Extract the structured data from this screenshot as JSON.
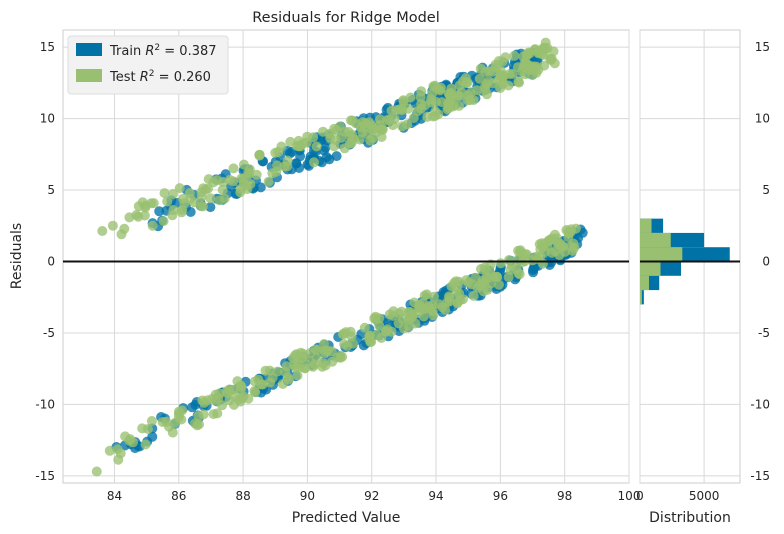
{
  "chart_data": {
    "type": "scatter",
    "title": "Residuals for Ridge Model",
    "xlabel": "Predicted Value",
    "ylabel": "Residuals",
    "xlim": [
      82.4,
      100.0
    ],
    "ylim": [
      -15.5,
      16.2
    ],
    "x_ticks": [
      84,
      86,
      88,
      90,
      92,
      94,
      96,
      98,
      100
    ],
    "y_ticks": [
      -15,
      -10,
      -5,
      0,
      5,
      10,
      15
    ],
    "grid": true,
    "legend_position": "top-left",
    "zero_line": 0,
    "series": [
      {
        "name": "Train",
        "r2_label": "0.387",
        "color": "#0072a6",
        "bands": [
          {
            "x0": 84.6,
            "y0": 2.5,
            "x1": 97.2,
            "y1": 14.2,
            "spread": 2.0
          },
          {
            "x0": 83.8,
            "y0": -13.2,
            "x1": 98.6,
            "y1": 1.6,
            "spread": 1.6
          }
        ],
        "histogram": {
          "bins": [
            -3.0,
            -2.0,
            -1.0,
            0.0,
            1.0,
            2.0,
            3.0
          ],
          "counts": [
            300,
            1500,
            3200,
            7000,
            5000,
            1800,
            400
          ]
        }
      },
      {
        "name": "Test",
        "r2_label": "0.260",
        "color": "#98c070",
        "bands": [
          {
            "x0": 83.3,
            "y0": 1.8,
            "x1": 97.7,
            "y1": 14.6,
            "spread": 2.2
          },
          {
            "x0": 83.0,
            "y0": -14.3,
            "x1": 98.4,
            "y1": 1.8,
            "spread": 1.8
          }
        ],
        "histogram": {
          "bins": [
            -3.0,
            -2.0,
            -1.0,
            0.0,
            1.0,
            2.0,
            3.0
          ],
          "counts": [
            150,
            700,
            1600,
            3300,
            2400,
            900,
            200
          ]
        }
      }
    ],
    "distribution": {
      "xlabel": "Distribution",
      "x_ticks": [
        0,
        5000
      ],
      "xlim": [
        0,
        7800
      ]
    }
  }
}
